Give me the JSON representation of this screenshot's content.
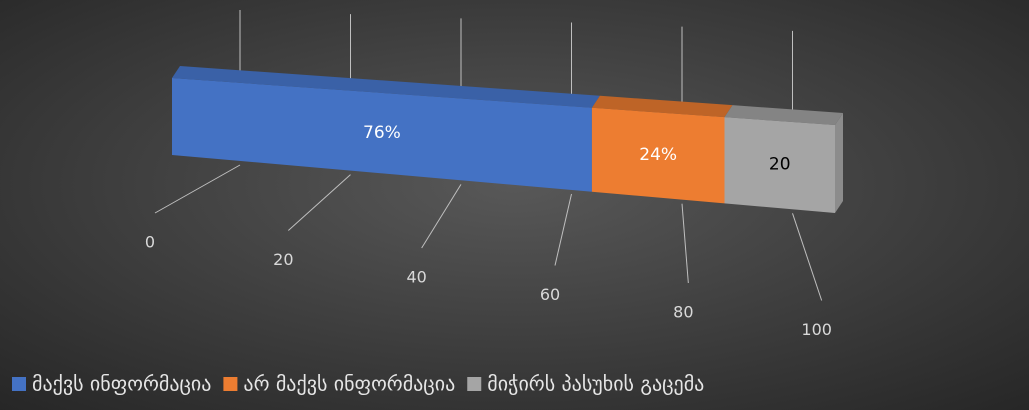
{
  "chart_data": {
    "type": "bar3d",
    "orientation": "horizontal",
    "stacked": true,
    "series": [
      {
        "name": "მაქვს ინფორმაცია",
        "color": "#4472c4",
        "values": [
          76
        ],
        "value_labels": [
          "76%"
        ]
      },
      {
        "name": "არ მაქვს ინფორმაცია",
        "color": "#ed7d31",
        "values": [
          24
        ],
        "value_labels": [
          "24%"
        ]
      },
      {
        "name": "მიჭირს პასუხის გაცემა",
        "color": "#a5a5a5",
        "values": [
          20
        ],
        "value_labels": [
          "20"
        ]
      }
    ],
    "xlim": [
      0,
      120
    ],
    "xticks": [
      0,
      20,
      40,
      60,
      80,
      100
    ],
    "grid": true,
    "legend": "bottom"
  }
}
